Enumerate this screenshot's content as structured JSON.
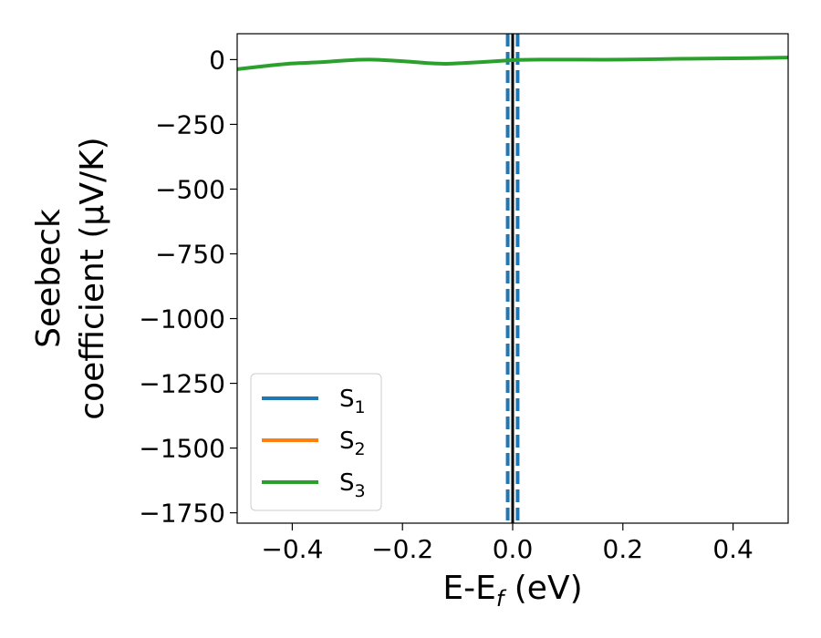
{
  "chart_data": {
    "type": "line",
    "xlabel": "E-E",
    "xlabel_sub": "f",
    "xlabel_unit": " (eV)",
    "ylabel_line1": "Seebeck",
    "ylabel_line2": "coefficient  (μV/K)",
    "xlim": [
      -0.5,
      0.5
    ],
    "ylim": [
      -1790,
      100
    ],
    "xticks": [
      -0.4,
      -0.2,
      0.0,
      0.2,
      0.4
    ],
    "xtick_labels": [
      "−0.4",
      "−0.2",
      "0.0",
      "0.2",
      "0.4"
    ],
    "yticks": [
      0,
      -250,
      -500,
      -750,
      -1000,
      -1250,
      -1500,
      -1750
    ],
    "ytick_labels": [
      "0",
      "−250",
      "−500",
      "−750",
      "−1000",
      "−1250",
      "−1500",
      "−1750"
    ],
    "grid": false,
    "legend_position": "lower-left",
    "series": [
      {
        "name": "S",
        "sub": "1",
        "color": "#1f77b4",
        "x": [],
        "y": []
      },
      {
        "name": "S",
        "sub": "2",
        "color": "#ff7f0e",
        "x": [],
        "y": []
      },
      {
        "name": "S",
        "sub": "3",
        "color": "#2ca02c",
        "x": [
          -0.5,
          -0.45,
          -0.4,
          -0.35,
          -0.3,
          -0.26,
          -0.2,
          -0.15,
          -0.12,
          -0.08,
          -0.03,
          0.0,
          0.05,
          0.1,
          0.2,
          0.3,
          0.4,
          0.5
        ],
        "y": [
          -37,
          -25,
          -15,
          -10,
          -3,
          0,
          -6,
          -14,
          -16,
          -12,
          -6,
          -2,
          0,
          0,
          0,
          3,
          5,
          8
        ]
      }
    ],
    "vertical_lines": [
      {
        "x": 0.0,
        "style": "solid",
        "color": "#000000"
      },
      {
        "x": -0.009,
        "style": "dashed",
        "color": "#1f77b4"
      },
      {
        "x": 0.009,
        "style": "dashed",
        "color": "#1f77b4"
      }
    ]
  }
}
